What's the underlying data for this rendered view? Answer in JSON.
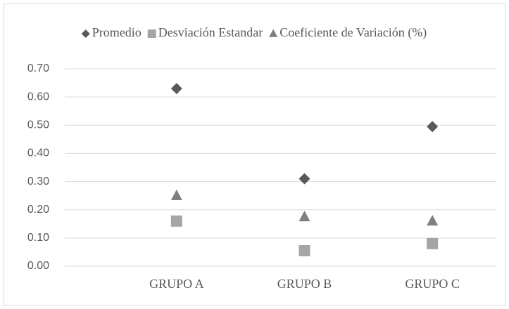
{
  "chart_data": {
    "type": "scatter",
    "categories": [
      "GRUPO A",
      "GRUPO B",
      "GRUPO C"
    ],
    "series": [
      {
        "name": "Promedio",
        "color": "#595959",
        "marker": "diamond",
        "values": [
          0.63,
          0.31,
          0.495
        ]
      },
      {
        "name": "Desviación Estandar",
        "color": "#a5a5a5",
        "marker": "square",
        "values": [
          0.16,
          0.055,
          0.08
        ]
      },
      {
        "name": "Coeficiente de Variación (%)",
        "color": "#7f7f7f",
        "marker": "triangle",
        "values": [
          0.25,
          0.175,
          0.16
        ]
      }
    ],
    "ylim": [
      0,
      0.7
    ],
    "yticks": [
      {
        "value": 0,
        "label": "0.00"
      },
      {
        "value": 0.1,
        "label": "0.10"
      },
      {
        "value": 0.2,
        "label": "0.20"
      },
      {
        "value": 0.3,
        "label": "0.30"
      },
      {
        "value": 0.4,
        "label": "0.40"
      },
      {
        "value": 0.5,
        "label": "0.50"
      },
      {
        "value": 0.6,
        "label": "0.60"
      },
      {
        "value": 0.7,
        "label": "0.70"
      }
    ],
    "grid": true,
    "legend": "top"
  }
}
